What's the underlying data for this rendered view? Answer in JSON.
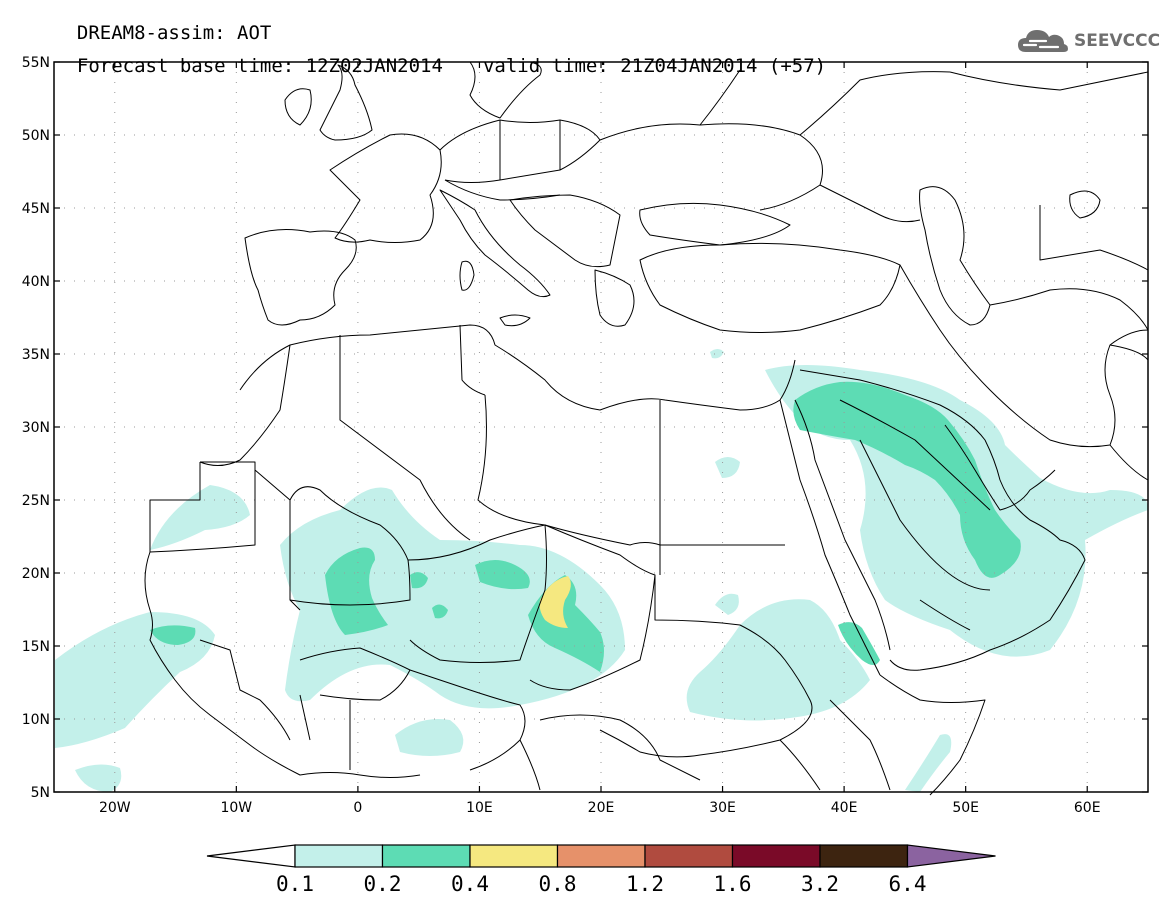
{
  "header": {
    "line1": "DREAM8-assim: AOT",
    "base_label": "Forecast base time: 12Z02JAN2014",
    "valid_label": "valid time: 21Z04JAN2014 (+57)"
  },
  "logo": {
    "text": "SEEVCCC",
    "icon": "cloud-icon"
  },
  "map": {
    "lon_range": [
      -25,
      65
    ],
    "lat_range": [
      5,
      55
    ],
    "grid": "dotted",
    "lat_ticks": [
      {
        "v": 55,
        "label": "55N"
      },
      {
        "v": 50,
        "label": "50N"
      },
      {
        "v": 45,
        "label": "45N"
      },
      {
        "v": 40,
        "label": "40N"
      },
      {
        "v": 35,
        "label": "35N"
      },
      {
        "v": 30,
        "label": "30N"
      },
      {
        "v": 25,
        "label": "25N"
      },
      {
        "v": 20,
        "label": "20N"
      },
      {
        "v": 15,
        "label": "15N"
      },
      {
        "v": 10,
        "label": "10N"
      },
      {
        "v": 5,
        "label": "5N"
      }
    ],
    "lon_ticks": [
      {
        "v": -20,
        "label": "20W"
      },
      {
        "v": -10,
        "label": "10W"
      },
      {
        "v": 0,
        "label": "0"
      },
      {
        "v": 10,
        "label": "10E"
      },
      {
        "v": 20,
        "label": "20E"
      },
      {
        "v": 30,
        "label": "30E"
      },
      {
        "v": 40,
        "label": "40E"
      },
      {
        "v": 50,
        "label": "50E"
      },
      {
        "v": 60,
        "label": "60E"
      }
    ]
  },
  "colorbar": {
    "levels": [
      "0.1",
      "0.2",
      "0.4",
      "0.8",
      "1.2",
      "1.6",
      "3.2",
      "6.4"
    ],
    "under_color": "#ffffff",
    "colors": [
      "#c3f0ea",
      "#5ddcb4",
      "#f5e880",
      "#e6916a",
      "#b04b3f",
      "#7a0a28",
      "#3d2410"
    ],
    "over_color": "#8b63a0"
  },
  "aot_fields": [
    {
      "name": "saharan-sahel-band",
      "level": "0.1",
      "color": "#c3f0ea"
    },
    {
      "name": "west-africa-coast",
      "level": "0.1",
      "color": "#c3f0ea"
    },
    {
      "name": "mali-niger-core",
      "level": "0.2",
      "color": "#5ddcb4"
    },
    {
      "name": "chad-core",
      "level": "0.2",
      "color": "#5ddcb4"
    },
    {
      "name": "chad-peak",
      "level": "0.4",
      "color": "#f5e880"
    },
    {
      "name": "arabia-gulf-plume",
      "level": "0.1",
      "color": "#c3f0ea"
    },
    {
      "name": "mesopotamia-core",
      "level": "0.2",
      "color": "#5ddcb4"
    },
    {
      "name": "red-sea-core",
      "level": "0.2",
      "color": "#5ddcb4"
    },
    {
      "name": "sudan-ethiopia-patch",
      "level": "0.1",
      "color": "#c3f0ea"
    }
  ]
}
